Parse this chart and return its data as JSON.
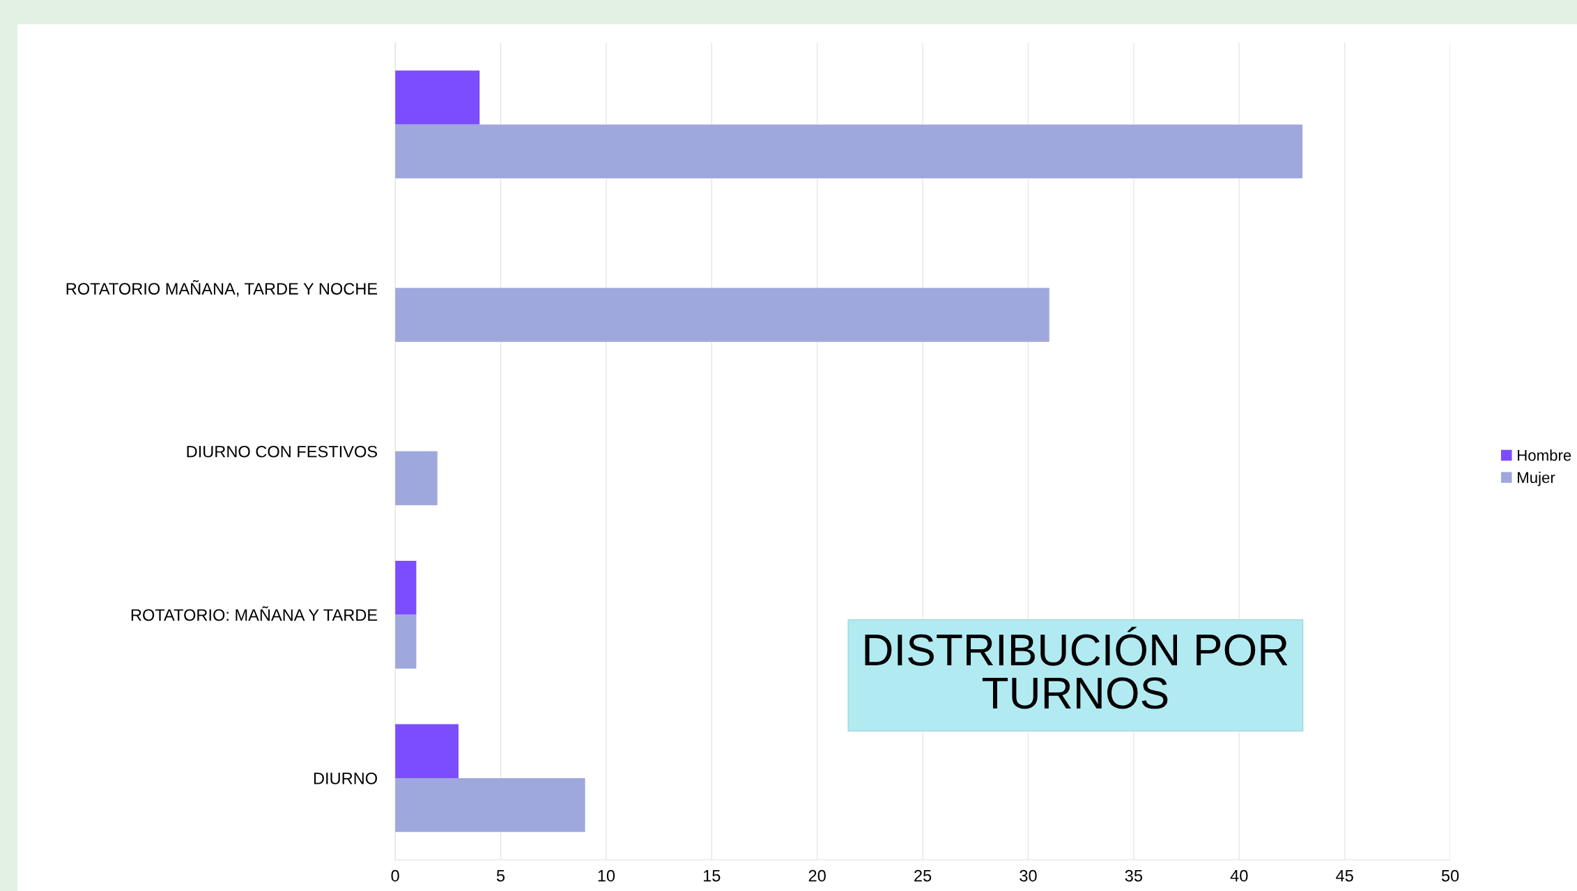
{
  "chart_data": {
    "type": "bar",
    "orientation": "horizontal",
    "title": "DISTRIBUCIÓN POR\nTURNOS",
    "categories": [
      null,
      "ROTATORIO MAÑANA, TARDE Y NOCHE",
      "DIURNO CON FESTIVOS",
      "ROTATORIO: MAÑANA Y TARDE",
      "DIURNO"
    ],
    "series": [
      {
        "name": "Hombre",
        "color": "#7b4dff",
        "values": [
          4,
          null,
          null,
          1,
          3
        ]
      },
      {
        "name": "Mujer",
        "color": "#9fa8dc",
        "values": [
          43,
          31,
          2,
          1,
          9
        ]
      }
    ],
    "xlim": [
      0,
      50
    ],
    "xticks": [
      0,
      5,
      10,
      15,
      20,
      25,
      30,
      35,
      40,
      45,
      50
    ],
    "grid": "x",
    "legend": "right"
  }
}
